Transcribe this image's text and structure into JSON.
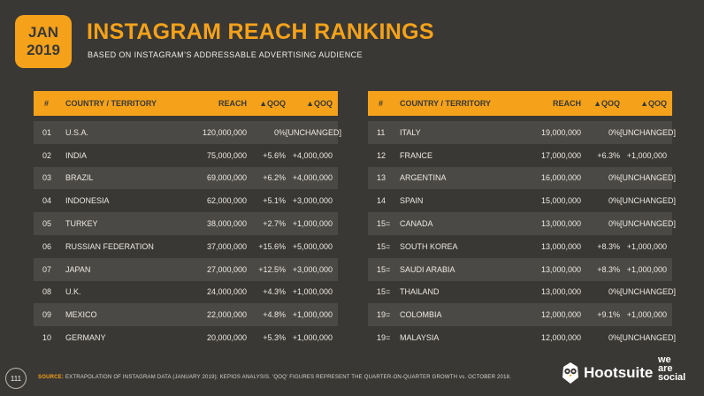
{
  "badge": {
    "month": "JAN",
    "year": "2019"
  },
  "title": "INSTAGRAM REACH RANKINGS",
  "subtitle": "BASED ON INSTAGRAM’S ADDRESSABLE ADVERTISING AUDIENCE",
  "columns": {
    "rank": "#",
    "country": "COUNTRY / TERRITORY",
    "reach": "REACH",
    "qoq_pct": "▲QOQ",
    "qoq_abs": "▲QOQ"
  },
  "left_rows": [
    {
      "rank": "01",
      "country": "U.S.A.",
      "reach": "120,000,000",
      "pct": "0%",
      "abs": "[UNCHANGED]"
    },
    {
      "rank": "02",
      "country": "INDIA",
      "reach": "75,000,000",
      "pct": "+5.6%",
      "abs": "+4,000,000"
    },
    {
      "rank": "03",
      "country": "BRAZIL",
      "reach": "69,000,000",
      "pct": "+6.2%",
      "abs": "+4,000,000"
    },
    {
      "rank": "04",
      "country": "INDONESIA",
      "reach": "62,000,000",
      "pct": "+5.1%",
      "abs": "+3,000,000"
    },
    {
      "rank": "05",
      "country": "TURKEY",
      "reach": "38,000,000",
      "pct": "+2.7%",
      "abs": "+1,000,000"
    },
    {
      "rank": "06",
      "country": "RUSSIAN FEDERATION",
      "reach": "37,000,000",
      "pct": "+15.6%",
      "abs": "+5,000,000"
    },
    {
      "rank": "07",
      "country": "JAPAN",
      "reach": "27,000,000",
      "pct": "+12.5%",
      "abs": "+3,000,000"
    },
    {
      "rank": "08",
      "country": "U.K.",
      "reach": "24,000,000",
      "pct": "+4.3%",
      "abs": "+1,000,000"
    },
    {
      "rank": "09",
      "country": "MEXICO",
      "reach": "22,000,000",
      "pct": "+4.8%",
      "abs": "+1,000,000"
    },
    {
      "rank": "10",
      "country": "GERMANY",
      "reach": "20,000,000",
      "pct": "+5.3%",
      "abs": "+1,000,000"
    }
  ],
  "right_rows": [
    {
      "rank": "11",
      "country": "ITALY",
      "reach": "19,000,000",
      "pct": "0%",
      "abs": "[UNCHANGED]"
    },
    {
      "rank": "12",
      "country": "FRANCE",
      "reach": "17,000,000",
      "pct": "+6.3%",
      "abs": "+1,000,000"
    },
    {
      "rank": "13",
      "country": "ARGENTINA",
      "reach": "16,000,000",
      "pct": "0%",
      "abs": "[UNCHANGED]"
    },
    {
      "rank": "14",
      "country": "SPAIN",
      "reach": "15,000,000",
      "pct": "0%",
      "abs": "[UNCHANGED]"
    },
    {
      "rank": "15=",
      "country": "CANADA",
      "reach": "13,000,000",
      "pct": "0%",
      "abs": "[UNCHANGED]"
    },
    {
      "rank": "15=",
      "country": "SOUTH KOREA",
      "reach": "13,000,000",
      "pct": "+8.3%",
      "abs": "+1,000,000"
    },
    {
      "rank": "15=",
      "country": "SAUDI ARABIA",
      "reach": "13,000,000",
      "pct": "+8.3%",
      "abs": "+1,000,000"
    },
    {
      "rank": "15=",
      "country": "THAILAND",
      "reach": "13,000,000",
      "pct": "0%",
      "abs": "[UNCHANGED]"
    },
    {
      "rank": "19=",
      "country": "COLOMBIA",
      "reach": "12,000,000",
      "pct": "+9.1%",
      "abs": "+1,000,000"
    },
    {
      "rank": "19=",
      "country": "MALAYSIA",
      "reach": "12,000,000",
      "pct": "0%",
      "abs": "[UNCHANGED]"
    }
  ],
  "footer": {
    "page_number": "111",
    "source_label": "SOURCE:",
    "source_text": "EXTRAPOLATION OF INSTAGRAM DATA (JANUARY 2019); KEPIOS ANALYSIS. ‘QOQ’ FIGURES REPRESENT THE QUARTER-ON-QUARTER GROWTH vs. OCTOBER 2018."
  },
  "brand": {
    "hootsuite": "Hootsuite",
    "was_line1": "we",
    "was_line2": "are",
    "was_line3": "social"
  },
  "colors": {
    "accent": "#f5a21a",
    "background": "#3a3835",
    "row_alt": "#4b4945"
  },
  "icons": {
    "brand_logo": "owl-icon"
  }
}
